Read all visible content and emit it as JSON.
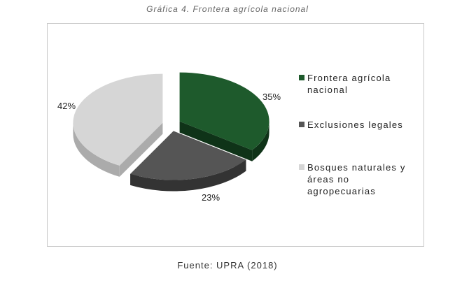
{
  "caption": "Gráfica 4. Frontera agrícola nacional",
  "source": "Fuente: UPRA (2018)",
  "chart_data": {
    "type": "pie",
    "title": "",
    "categories": [
      "Frontera agrícola nacional",
      "Exclusiones legales",
      "Bosques naturales y áreas no agropecuarias"
    ],
    "values": [
      35,
      23,
      42
    ],
    "labels": [
      "35%",
      "23%",
      "42%"
    ],
    "colors": [
      "#1e5a2c",
      "#555555",
      "#d6d6d6"
    ],
    "legend_position": "right"
  }
}
